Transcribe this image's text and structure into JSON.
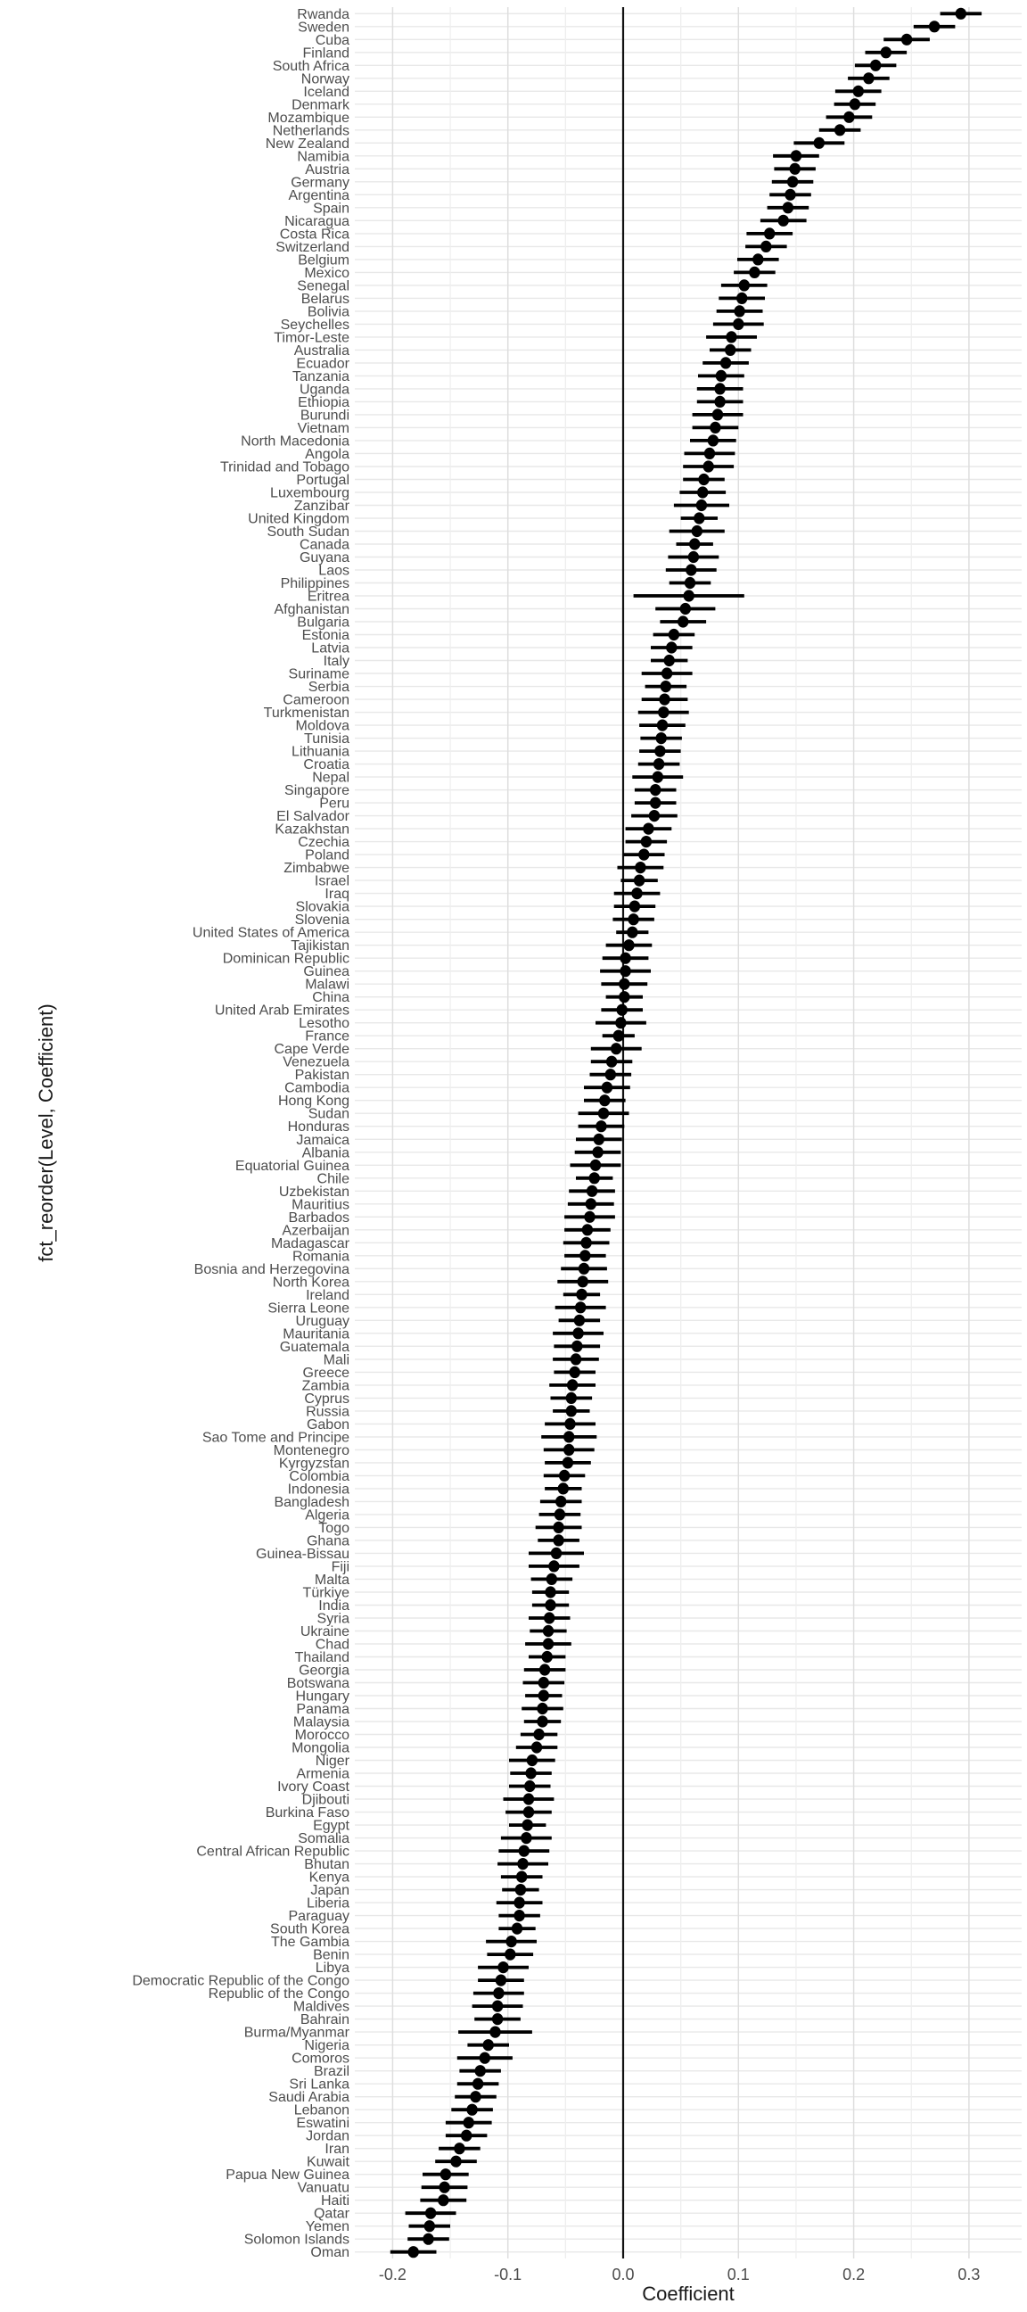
{
  "figure": {
    "background": "#ffffff"
  },
  "colors": {
    "point": "#000000",
    "error_bar": "#000000",
    "zero_line": "#111111",
    "grid_row": "#e8e8e8",
    "grid_major_v": "#dedede",
    "grid_minor_v": "#eeeeee",
    "tick_text": "#4d4d4d",
    "title_text": "#1a1a1a"
  },
  "chart_data": {
    "type": "scatter",
    "subtype": "pointrange-coefficient-plot",
    "orientation": "horizontal",
    "title": "",
    "xlabel": "Coefficient",
    "ylabel": "fct_reorder(Level, Coefficient)",
    "xlim": [
      -0.233,
      0.346
    ],
    "x_ticks": [
      -0.2,
      -0.1,
      0.0,
      0.1,
      0.2,
      0.3
    ],
    "x_tick_labels": [
      "-0.2",
      "-0.1",
      "0.0",
      "0.1",
      "0.2",
      "0.3"
    ],
    "x_minor_ticks": [
      -0.15,
      -0.05,
      0.05,
      0.15,
      0.25
    ],
    "grid": true,
    "legend": false,
    "reference_line_x": 0.0,
    "error_bars": true,
    "point_format": [
      "label",
      "value",
      "error"
    ],
    "points": [
      [
        "Rwanda",
        0.293,
        0.018
      ],
      [
        "Sweden",
        0.27,
        0.018
      ],
      [
        "Cuba",
        0.246,
        0.02
      ],
      [
        "Finland",
        0.228,
        0.018
      ],
      [
        "South Africa",
        0.219,
        0.018
      ],
      [
        "Norway",
        0.213,
        0.018
      ],
      [
        "Iceland",
        0.204,
        0.02
      ],
      [
        "Denmark",
        0.201,
        0.018
      ],
      [
        "Mozambique",
        0.196,
        0.02
      ],
      [
        "Netherlands",
        0.188,
        0.018
      ],
      [
        "New Zealand",
        0.17,
        0.022
      ],
      [
        "Namibia",
        0.15,
        0.02
      ],
      [
        "Austria",
        0.149,
        0.018
      ],
      [
        "Germany",
        0.147,
        0.018
      ],
      [
        "Argentina",
        0.145,
        0.018
      ],
      [
        "Spain",
        0.143,
        0.018
      ],
      [
        "Nicaragua",
        0.139,
        0.02
      ],
      [
        "Costa Rica",
        0.127,
        0.02
      ],
      [
        "Switzerland",
        0.124,
        0.018
      ],
      [
        "Belgium",
        0.117,
        0.018
      ],
      [
        "Mexico",
        0.114,
        0.018
      ],
      [
        "Senegal",
        0.105,
        0.02
      ],
      [
        "Belarus",
        0.103,
        0.02
      ],
      [
        "Bolivia",
        0.101,
        0.02
      ],
      [
        "Seychelles",
        0.1,
        0.022
      ],
      [
        "Timor-Leste",
        0.094,
        0.022
      ],
      [
        "Australia",
        0.093,
        0.018
      ],
      [
        "Ecuador",
        0.089,
        0.02
      ],
      [
        "Tanzania",
        0.085,
        0.02
      ],
      [
        "Uganda",
        0.084,
        0.02
      ],
      [
        "Ethiopia",
        0.084,
        0.02
      ],
      [
        "Burundi",
        0.082,
        0.022
      ],
      [
        "Vietnam",
        0.08,
        0.02
      ],
      [
        "North Macedonia",
        0.078,
        0.02
      ],
      [
        "Angola",
        0.075,
        0.022
      ],
      [
        "Trinidad and Tobago",
        0.074,
        0.022
      ],
      [
        "Portugal",
        0.07,
        0.018
      ],
      [
        "Luxembourg",
        0.069,
        0.02
      ],
      [
        "Zanzibar",
        0.068,
        0.024
      ],
      [
        "United Kingdom",
        0.066,
        0.016
      ],
      [
        "South Sudan",
        0.064,
        0.024
      ],
      [
        "Canada",
        0.062,
        0.016
      ],
      [
        "Guyana",
        0.061,
        0.022
      ],
      [
        "Laos",
        0.059,
        0.022
      ],
      [
        "Philippines",
        0.058,
        0.018
      ],
      [
        "Eritrea",
        0.057,
        0.048
      ],
      [
        "Afghanistan",
        0.054,
        0.026
      ],
      [
        "Bulgaria",
        0.052,
        0.02
      ],
      [
        "Estonia",
        0.044,
        0.018
      ],
      [
        "Latvia",
        0.042,
        0.018
      ],
      [
        "Italy",
        0.04,
        0.016
      ],
      [
        "Suriname",
        0.038,
        0.022
      ],
      [
        "Serbia",
        0.037,
        0.018
      ],
      [
        "Cameroon",
        0.036,
        0.02
      ],
      [
        "Turkmenistan",
        0.035,
        0.022
      ],
      [
        "Moldova",
        0.034,
        0.02
      ],
      [
        "Tunisia",
        0.033,
        0.018
      ],
      [
        "Lithuania",
        0.032,
        0.018
      ],
      [
        "Croatia",
        0.031,
        0.018
      ],
      [
        "Nepal",
        0.03,
        0.022
      ],
      [
        "Singapore",
        0.028,
        0.018
      ],
      [
        "Peru",
        0.028,
        0.018
      ],
      [
        "El Salvador",
        0.027,
        0.02
      ],
      [
        "Kazakhstan",
        0.022,
        0.02
      ],
      [
        "Czechia",
        0.02,
        0.018
      ],
      [
        "Poland",
        0.018,
        0.018
      ],
      [
        "Zimbabwe",
        0.015,
        0.02
      ],
      [
        "Israel",
        0.014,
        0.016
      ],
      [
        "Iraq",
        0.012,
        0.02
      ],
      [
        "Slovakia",
        0.01,
        0.018
      ],
      [
        "Slovenia",
        0.009,
        0.018
      ],
      [
        "United States of America",
        0.008,
        0.014
      ],
      [
        "Tajikistan",
        0.005,
        0.02
      ],
      [
        "Dominican Republic",
        0.002,
        0.02
      ],
      [
        "Guinea",
        0.002,
        0.022
      ],
      [
        "Malawi",
        0.001,
        0.02
      ],
      [
        "China",
        0.001,
        0.016
      ],
      [
        "United Arab Emirates",
        -0.001,
        0.018
      ],
      [
        "Lesotho",
        -0.002,
        0.022
      ],
      [
        "France",
        -0.004,
        0.014
      ],
      [
        "Cape Verde",
        -0.006,
        0.022
      ],
      [
        "Venezuela",
        -0.01,
        0.018
      ],
      [
        "Pakistan",
        -0.011,
        0.018
      ],
      [
        "Cambodia",
        -0.014,
        0.02
      ],
      [
        "Hong Kong",
        -0.016,
        0.018
      ],
      [
        "Sudan",
        -0.017,
        0.022
      ],
      [
        "Honduras",
        -0.019,
        0.02
      ],
      [
        "Jamaica",
        -0.021,
        0.02
      ],
      [
        "Albania",
        -0.022,
        0.02
      ],
      [
        "Equatorial Guinea",
        -0.024,
        0.022
      ],
      [
        "Chile",
        -0.025,
        0.016
      ],
      [
        "Uzbekistan",
        -0.027,
        0.02
      ],
      [
        "Mauritius",
        -0.028,
        0.02
      ],
      [
        "Barbados",
        -0.029,
        0.022
      ],
      [
        "Azerbaijan",
        -0.031,
        0.02
      ],
      [
        "Madagascar",
        -0.032,
        0.02
      ],
      [
        "Romania",
        -0.033,
        0.018
      ],
      [
        "Bosnia and Herzegovina",
        -0.034,
        0.02
      ],
      [
        "North Korea",
        -0.035,
        0.022
      ],
      [
        "Ireland",
        -0.036,
        0.016
      ],
      [
        "Sierra Leone",
        -0.037,
        0.022
      ],
      [
        "Uruguay",
        -0.038,
        0.018
      ],
      [
        "Mauritania",
        -0.039,
        0.022
      ],
      [
        "Guatemala",
        -0.04,
        0.02
      ],
      [
        "Mali",
        -0.041,
        0.02
      ],
      [
        "Greece",
        -0.042,
        0.018
      ],
      [
        "Zambia",
        -0.044,
        0.02
      ],
      [
        "Cyprus",
        -0.045,
        0.018
      ],
      [
        "Russia",
        -0.045,
        0.016
      ],
      [
        "Gabon",
        -0.046,
        0.022
      ],
      [
        "Sao Tome and Principe",
        -0.047,
        0.024
      ],
      [
        "Montenegro",
        -0.047,
        0.022
      ],
      [
        "Kyrgyzstan",
        -0.048,
        0.02
      ],
      [
        "Colombia",
        -0.051,
        0.018
      ],
      [
        "Indonesia",
        -0.052,
        0.016
      ],
      [
        "Bangladesh",
        -0.054,
        0.018
      ],
      [
        "Algeria",
        -0.055,
        0.018
      ],
      [
        "Togo",
        -0.056,
        0.02
      ],
      [
        "Ghana",
        -0.056,
        0.018
      ],
      [
        "Guinea-Bissau",
        -0.058,
        0.024
      ],
      [
        "Fiji",
        -0.06,
        0.022
      ],
      [
        "Malta",
        -0.062,
        0.018
      ],
      [
        "Türkiye",
        -0.063,
        0.016
      ],
      [
        "India",
        -0.063,
        0.016
      ],
      [
        "Syria",
        -0.064,
        0.018
      ],
      [
        "Ukraine",
        -0.065,
        0.016
      ],
      [
        "Chad",
        -0.065,
        0.02
      ],
      [
        "Thailand",
        -0.066,
        0.016
      ],
      [
        "Georgia",
        -0.068,
        0.018
      ],
      [
        "Botswana",
        -0.069,
        0.018
      ],
      [
        "Hungary",
        -0.069,
        0.016
      ],
      [
        "Panama",
        -0.07,
        0.018
      ],
      [
        "Malaysia",
        -0.07,
        0.016
      ],
      [
        "Morocco",
        -0.073,
        0.016
      ],
      [
        "Mongolia",
        -0.075,
        0.018
      ],
      [
        "Niger",
        -0.079,
        0.02
      ],
      [
        "Armenia",
        -0.08,
        0.018
      ],
      [
        "Ivory Coast",
        -0.081,
        0.018
      ],
      [
        "Djibouti",
        -0.082,
        0.022
      ],
      [
        "Burkina Faso",
        -0.082,
        0.02
      ],
      [
        "Egypt",
        -0.083,
        0.016
      ],
      [
        "Somalia",
        -0.084,
        0.022
      ],
      [
        "Central African Republic",
        -0.086,
        0.022
      ],
      [
        "Bhutan",
        -0.087,
        0.022
      ],
      [
        "Kenya",
        -0.088,
        0.018
      ],
      [
        "Japan",
        -0.089,
        0.016
      ],
      [
        "Liberia",
        -0.09,
        0.02
      ],
      [
        "Paraguay",
        -0.09,
        0.018
      ],
      [
        "South Korea",
        -0.092,
        0.016
      ],
      [
        "The Gambia",
        -0.097,
        0.022
      ],
      [
        "Benin",
        -0.098,
        0.02
      ],
      [
        "Libya",
        -0.104,
        0.022
      ],
      [
        "Democratic Republic of the Congo",
        -0.106,
        0.02
      ],
      [
        "Republic of the Congo",
        -0.108,
        0.022
      ],
      [
        "Maldives",
        -0.109,
        0.022
      ],
      [
        "Bahrain",
        -0.109,
        0.02
      ],
      [
        "Burma/Myanmar",
        -0.111,
        0.032
      ],
      [
        "Nigeria",
        -0.117,
        0.018
      ],
      [
        "Comoros",
        -0.12,
        0.024
      ],
      [
        "Brazil",
        -0.124,
        0.018
      ],
      [
        "Sri Lanka",
        -0.126,
        0.018
      ],
      [
        "Saudi Arabia",
        -0.128,
        0.018
      ],
      [
        "Lebanon",
        -0.131,
        0.018
      ],
      [
        "Eswatini",
        -0.134,
        0.02
      ],
      [
        "Jordan",
        -0.136,
        0.018
      ],
      [
        "Iran",
        -0.142,
        0.018
      ],
      [
        "Kuwait",
        -0.145,
        0.018
      ],
      [
        "Papua New Guinea",
        -0.154,
        0.02
      ],
      [
        "Vanuatu",
        -0.155,
        0.02
      ],
      [
        "Haiti",
        -0.156,
        0.02
      ],
      [
        "Qatar",
        -0.167,
        0.022
      ],
      [
        "Yemen",
        -0.168,
        0.018
      ],
      [
        "Solomon Islands",
        -0.169,
        0.018
      ],
      [
        "Oman",
        -0.182,
        0.02
      ]
    ]
  }
}
